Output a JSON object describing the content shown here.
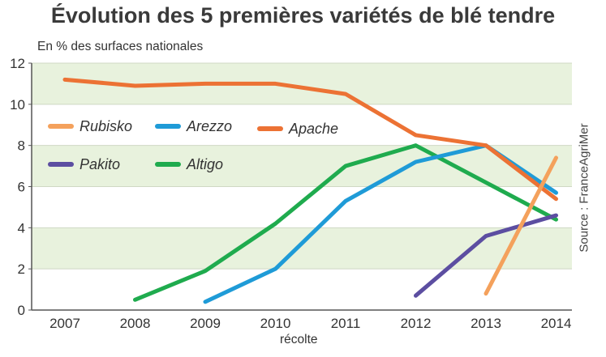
{
  "chart_data": {
    "type": "line",
    "title": "Évolution des 5 premières variétés de blé tendre",
    "ylabel": "En % des surfaces nationales",
    "xlabel": "récolte",
    "source": "Source : FranceAgriMer",
    "x": [
      "2007",
      "2008",
      "2009",
      "2010",
      "2011",
      "2012",
      "2013",
      "2014"
    ],
    "ylim": [
      0,
      12
    ],
    "yticks": [
      "0",
      "2",
      "4",
      "6",
      "8",
      "10",
      "12"
    ],
    "grid": "horizontal bands",
    "legend_position": "top-left, inside",
    "series": [
      {
        "name": "Apache",
        "color": "#ec7234",
        "values": [
          11.2,
          10.9,
          11.0,
          11.0,
          10.5,
          8.5,
          8.0,
          5.4
        ]
      },
      {
        "name": "Arezzo",
        "color": "#1f9bd7",
        "values": [
          null,
          null,
          0.4,
          2.0,
          5.3,
          7.2,
          8.0,
          5.7
        ]
      },
      {
        "name": "Altigo",
        "color": "#1fab4e",
        "values": [
          null,
          0.5,
          1.9,
          4.2,
          7.0,
          8.0,
          6.2,
          4.4
        ]
      },
      {
        "name": "Pakito",
        "color": "#5c4ea1",
        "values": [
          null,
          null,
          null,
          null,
          null,
          0.7,
          3.6,
          4.6
        ]
      },
      {
        "name": "Rubisko",
        "color": "#f4a15c",
        "values": [
          null,
          null,
          null,
          null,
          null,
          null,
          0.8,
          7.4
        ]
      }
    ],
    "legend_order": [
      "Rubisko",
      "Arezzo",
      "Apache",
      "Pakito",
      "Altigo"
    ]
  }
}
